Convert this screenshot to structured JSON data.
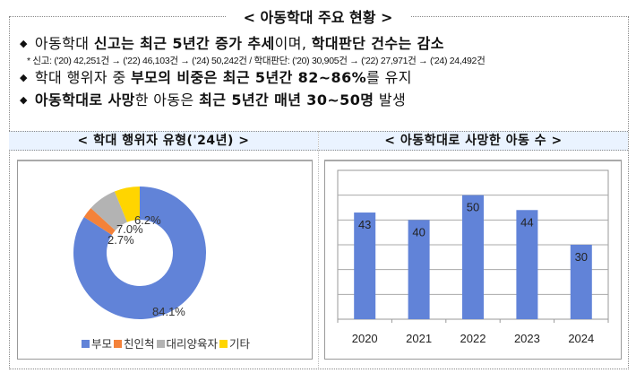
{
  "header": {
    "title": "< 아동학대 주요 현황 >"
  },
  "bullets": [
    {
      "parts": [
        {
          "t": "아동학대 ",
          "b": false
        },
        {
          "t": "신고는 최근 5년간 증가 추세",
          "b": true
        },
        {
          "t": "이며, ",
          "b": false
        },
        {
          "t": "학대판단 건수는 감소",
          "b": true
        }
      ]
    },
    {
      "parts": [
        {
          "t": "학대 행위자 중 ",
          "b": false
        },
        {
          "t": "부모의 비중은 최근 5년간 82~86%",
          "b": true
        },
        {
          "t": "를 유지",
          "b": false
        }
      ]
    },
    {
      "parts": [
        {
          "t": "아동학대로 사망",
          "b": true
        },
        {
          "t": "한 아동은 ",
          "b": false
        },
        {
          "t": "최근 5년간 매년 30~50명",
          "b": true
        },
        {
          "t": " 발생",
          "b": false
        }
      ]
    }
  ],
  "note": "* 신고: ('20) 42,251건 → ('22) 46,103건 → ('24) 50,242건 / 학대판단: ('20) 30,905건 → ('22) 27,971건 → ('24) 24,492건",
  "panels": {
    "left_title": "< 학대 행위자 유형('24년) >",
    "right_title": "< 아동학대로 사망한 아동 수 >"
  },
  "chart_data": [
    {
      "type": "pie",
      "title": "학대 행위자 유형('24년)",
      "donut": true,
      "categories": [
        "부모",
        "친인척",
        "대리양육자",
        "기타"
      ],
      "values": [
        84.1,
        2.7,
        7.0,
        6.2
      ],
      "labels": [
        "84.1%",
        "2.7%",
        "7.0%",
        "6.2%"
      ],
      "colors": [
        "#6183d8",
        "#f4823a",
        "#b3b3b3",
        "#ffd500"
      ],
      "legend_position": "bottom"
    },
    {
      "type": "bar",
      "title": "아동학대로 사망한 아동 수",
      "categories": [
        "2020",
        "2021",
        "2022",
        "2023",
        "2024"
      ],
      "values": [
        43,
        40,
        50,
        44,
        30
      ],
      "color": "#6183d8",
      "xlabel": "",
      "ylabel": "",
      "ylim": [
        0,
        60
      ],
      "grid": true,
      "data_labels": true
    }
  ]
}
